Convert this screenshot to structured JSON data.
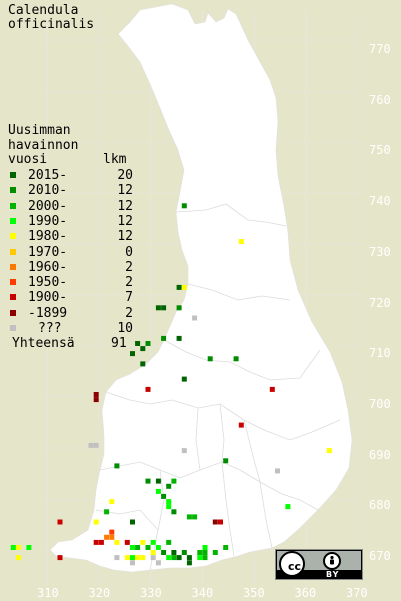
{
  "title": [
    "Calendula",
    "officinalis"
  ],
  "legend": {
    "header": [
      "Uusimman",
      "havainnon"
    ],
    "col_year": "vuosi",
    "col_count": "lkm",
    "rows": [
      {
        "label": "2015-",
        "count": "20",
        "color": "#006400"
      },
      {
        "label": "2010-",
        "count": "12",
        "color": "#008c00"
      },
      {
        "label": "2000-",
        "count": "12",
        "color": "#00b400"
      },
      {
        "label": "1990-",
        "count": "12",
        "color": "#00ff00"
      },
      {
        "label": "1980-",
        "count": "12",
        "color": "#ffff00"
      },
      {
        "label": "1970-",
        "count": "0",
        "color": "#ffc800"
      },
      {
        "label": "1960-",
        "count": "2",
        "color": "#ff7800"
      },
      {
        "label": "1950-",
        "count": "2",
        "color": "#ff3c00"
      },
      {
        "label": "1900-",
        "count": "7",
        "color": "#c80000"
      },
      {
        "label": "-1899",
        "count": "2",
        "color": "#8c0000"
      },
      {
        "label": "???",
        "count": "10",
        "color": "#c0c0c0"
      }
    ],
    "total_label": "Yhteensä",
    "total_count": "91"
  },
  "axes": {
    "y_ticks": [
      "770",
      "760",
      "750",
      "740",
      "730",
      "720",
      "710",
      "700",
      "690",
      "680",
      "670"
    ],
    "x_ticks": [
      "310",
      "320",
      "330",
      "340",
      "350",
      "360",
      "370"
    ]
  },
  "colors": {
    "background": "#e5e5c9",
    "land": "#ffffff",
    "grid": "#e6e6e6",
    "border": "#d0d0d0"
  },
  "license": {
    "cc": "cc",
    "by": "BY",
    "icon": "cc-by-icon"
  },
  "observations": [
    {
      "e": 336.5,
      "n": 737.5,
      "color": "#008c00"
    },
    {
      "e": 347.5,
      "n": 730.5,
      "color": "#ffff00"
    },
    {
      "e": 335.5,
      "n": 721.5,
      "color": "#006400"
    },
    {
      "e": 336.5,
      "n": 721.5,
      "color": "#ffff00"
    },
    {
      "e": 331.5,
      "n": 717.5,
      "color": "#006400"
    },
    {
      "e": 332.5,
      "n": 717.5,
      "color": "#006400"
    },
    {
      "e": 335.5,
      "n": 717.5,
      "color": "#008c00"
    },
    {
      "e": 338.5,
      "n": 715.5,
      "color": "#c0c0c0"
    },
    {
      "e": 332.5,
      "n": 711.5,
      "color": "#008c00"
    },
    {
      "e": 335.5,
      "n": 711.5,
      "color": "#006400"
    },
    {
      "e": 327.5,
      "n": 710.5,
      "color": "#006400"
    },
    {
      "e": 328.5,
      "n": 709.5,
      "color": "#006400"
    },
    {
      "e": 329.5,
      "n": 710.5,
      "color": "#008c00"
    },
    {
      "e": 326.5,
      "n": 708.5,
      "color": "#006400"
    },
    {
      "e": 341.5,
      "n": 707.5,
      "color": "#008c00"
    },
    {
      "e": 346.5,
      "n": 707.5,
      "color": "#008c00"
    },
    {
      "e": 328.5,
      "n": 706.5,
      "color": "#006400"
    },
    {
      "e": 336.5,
      "n": 703.5,
      "color": "#006400"
    },
    {
      "e": 329.5,
      "n": 701.5,
      "color": "#c80000"
    },
    {
      "e": 353.5,
      "n": 701.5,
      "color": "#c80000"
    },
    {
      "e": 319.5,
      "n": 700.5,
      "color": "#8c0000"
    },
    {
      "e": 319.5,
      "n": 699.5,
      "color": "#8c0000"
    },
    {
      "e": 347.5,
      "n": 694.5,
      "color": "#c80000"
    },
    {
      "e": 318.5,
      "n": 690.5,
      "color": "#c0c0c0"
    },
    {
      "e": 319.5,
      "n": 690.5,
      "color": "#c0c0c0"
    },
    {
      "e": 336.5,
      "n": 689.5,
      "color": "#c0c0c0"
    },
    {
      "e": 364.5,
      "n": 689.5,
      "color": "#ffff00"
    },
    {
      "e": 344.5,
      "n": 687.5,
      "color": "#008c00"
    },
    {
      "e": 323.5,
      "n": 686.5,
      "color": "#008c00"
    },
    {
      "e": 354.5,
      "n": 685.5,
      "color": "#c0c0c0"
    },
    {
      "e": 329.5,
      "n": 683.5,
      "color": "#008c00"
    },
    {
      "e": 331.5,
      "n": 683.5,
      "color": "#006400"
    },
    {
      "e": 333.5,
      "n": 682.5,
      "color": "#008c00"
    },
    {
      "e": 334.5,
      "n": 683.5,
      "color": "#00b400"
    },
    {
      "e": 331.5,
      "n": 681.5,
      "color": "#00ff00"
    },
    {
      "e": 332.5,
      "n": 680.5,
      "color": "#008c00"
    },
    {
      "e": 333.5,
      "n": 679.5,
      "color": "#00ff00"
    },
    {
      "e": 333.5,
      "n": 678.5,
      "color": "#00ff00"
    },
    {
      "e": 334.5,
      "n": 677.5,
      "color": "#008c00"
    },
    {
      "e": 322.5,
      "n": 679.5,
      "color": "#ffff00"
    },
    {
      "e": 321.5,
      "n": 677.5,
      "color": "#00b400"
    },
    {
      "e": 337.5,
      "n": 676.5,
      "color": "#00b400"
    },
    {
      "e": 338.5,
      "n": 676.5,
      "color": "#00b400"
    },
    {
      "e": 356.5,
      "n": 678.5,
      "color": "#00ff00"
    },
    {
      "e": 312.5,
      "n": 675.5,
      "color": "#c80000"
    },
    {
      "e": 319.5,
      "n": 675.5,
      "color": "#ffff00"
    },
    {
      "e": 326.5,
      "n": 675.5,
      "color": "#006400"
    },
    {
      "e": 342.5,
      "n": 675.5,
      "color": "#8c0000"
    },
    {
      "e": 343.5,
      "n": 675.5,
      "color": "#c80000"
    },
    {
      "e": 322.5,
      "n": 673.5,
      "color": "#ff3c00"
    },
    {
      "e": 321.5,
      "n": 672.5,
      "color": "#ff7800"
    },
    {
      "e": 322.5,
      "n": 672.5,
      "color": "#ff7800"
    },
    {
      "e": 319.5,
      "n": 671.5,
      "color": "#c80000"
    },
    {
      "e": 320.5,
      "n": 671.5,
      "color": "#c80000"
    },
    {
      "e": 323.5,
      "n": 671.5,
      "color": "#ffff00"
    },
    {
      "e": 325.5,
      "n": 671.5,
      "color": "#c80000"
    },
    {
      "e": 328.5,
      "n": 671.5,
      "color": "#ffff00"
    },
    {
      "e": 330.5,
      "n": 671.5,
      "color": "#00ff00"
    },
    {
      "e": 333.5,
      "n": 671.5,
      "color": "#00b400"
    },
    {
      "e": 340.5,
      "n": 670.5,
      "color": "#00ff00"
    },
    {
      "e": 344.5,
      "n": 670.5,
      "color": "#00b400"
    },
    {
      "e": 303.5,
      "n": 670.5,
      "color": "#00ff00"
    },
    {
      "e": 304.5,
      "n": 670.5,
      "color": "#ffff00"
    },
    {
      "e": 306.5,
      "n": 670.5,
      "color": "#00ff00"
    },
    {
      "e": 326.5,
      "n": 670.5,
      "color": "#00ff00"
    },
    {
      "e": 327.5,
      "n": 670.5,
      "color": "#00b400"
    },
    {
      "e": 329.5,
      "n": 670.5,
      "color": "#00b400"
    },
    {
      "e": 330.5,
      "n": 669.5,
      "color": "#ffff00"
    },
    {
      "e": 331.5,
      "n": 670.5,
      "color": "#00ff00"
    },
    {
      "e": 332.5,
      "n": 669.5,
      "color": "#008c00"
    },
    {
      "e": 334.5,
      "n": 669.5,
      "color": "#006400"
    },
    {
      "e": 336.5,
      "n": 669.5,
      "color": "#008c00"
    },
    {
      "e": 339.5,
      "n": 669.5,
      "color": "#00b400"
    },
    {
      "e": 340.5,
      "n": 669.5,
      "color": "#00b400"
    },
    {
      "e": 342.5,
      "n": 669.5,
      "color": "#00b400"
    },
    {
      "e": 304.5,
      "n": 668.5,
      "color": "#ffff00"
    },
    {
      "e": 312.5,
      "n": 668.5,
      "color": "#c80000"
    },
    {
      "e": 323.5,
      "n": 668.5,
      "color": "#c0c0c0"
    },
    {
      "e": 325.5,
      "n": 668.5,
      "color": "#ffff00"
    },
    {
      "e": 326.5,
      "n": 668.5,
      "color": "#00ff00"
    },
    {
      "e": 327.5,
      "n": 668.5,
      "color": "#ffff00"
    },
    {
      "e": 328.5,
      "n": 668.5,
      "color": "#ffff00"
    },
    {
      "e": 333.5,
      "n": 668.5,
      "color": "#00ff00"
    },
    {
      "e": 334.5,
      "n": 668.5,
      "color": "#00b400"
    },
    {
      "e": 335.5,
      "n": 668.5,
      "color": "#006400"
    },
    {
      "e": 337.5,
      "n": 668.5,
      "color": "#006400"
    },
    {
      "e": 339.5,
      "n": 668.5,
      "color": "#00ff00"
    },
    {
      "e": 340.5,
      "n": 668.5,
      "color": "#00b400"
    },
    {
      "e": 330.5,
      "n": 668.5,
      "color": "#c0c0c0"
    },
    {
      "e": 326.5,
      "n": 667.5,
      "color": "#c0c0c0"
    },
    {
      "e": 331.5,
      "n": 667.5,
      "color": "#c0c0c0"
    },
    {
      "e": 337.5,
      "n": 667.5,
      "color": "#006400"
    }
  ]
}
